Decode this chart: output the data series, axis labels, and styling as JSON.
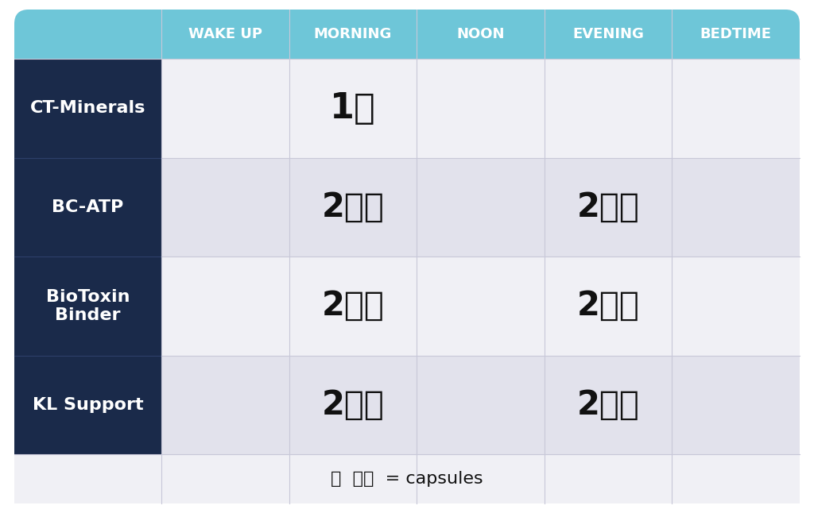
{
  "header_cols": [
    "WAKE UP",
    "MORNING",
    "NOON",
    "EVENING",
    "BEDTIME"
  ],
  "row_labels": [
    "CT-Minerals",
    "BC-ATP",
    "BioToxin\nBinder",
    "KL Support"
  ],
  "header_bg": "#6ec6d8",
  "header_text_color": "#ffffff",
  "row_label_bg": "#1a2a4a",
  "row_label_text_color": "#ffffff",
  "cell_bg_light": "#f0f0f5",
  "cell_bg_dark": "#e2e2ec",
  "grid_line_color": "#c8c8d8",
  "fig_bg": "#ffffff",
  "header_fontsize": 13,
  "label_fontsize": 16,
  "footer_fontsize": 16,
  "dosage_entries": [
    [
      0,
      1,
      "1",
      1
    ],
    [
      1,
      1,
      "2",
      2
    ],
    [
      1,
      3,
      "2",
      2
    ],
    [
      2,
      1,
      "2",
      2
    ],
    [
      2,
      3,
      "2",
      2
    ],
    [
      3,
      1,
      "2",
      2
    ],
    [
      3,
      3,
      "2",
      2
    ]
  ]
}
